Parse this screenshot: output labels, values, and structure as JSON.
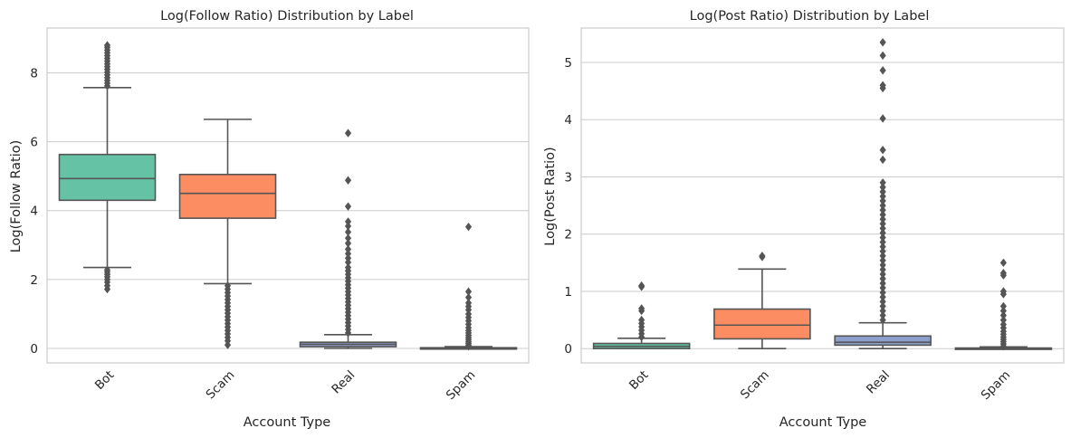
{
  "colors": {
    "background": "#ffffff",
    "grid": "#cccccc",
    "spine": "#cccccc",
    "box_edge": "#555555",
    "flier": "#555555"
  },
  "chart_data": [
    {
      "type": "box",
      "title": "Log(Follow Ratio) Distribution by Label",
      "xlabel": "Account Type",
      "ylabel": "Log(Follow Ratio)",
      "categories": [
        "Bot",
        "Scam",
        "Real",
        "Spam"
      ],
      "ylim": [
        -0.42,
        9.3
      ],
      "yticks": [
        0,
        2,
        4,
        6,
        8
      ],
      "grid": "horizontal",
      "x_tick_rotation": 45,
      "boxes": [
        {
          "label": "Bot",
          "color": "#66c2a5",
          "whisker_low": 2.35,
          "q1": 4.3,
          "median": 4.93,
          "q3": 5.63,
          "whisker_high": 7.57,
          "outliers": [
            1.72,
            1.82,
            1.92,
            2.0,
            2.08,
            2.15,
            2.22,
            2.28,
            7.62,
            7.7,
            7.78,
            7.86,
            7.94,
            8.02,
            8.1,
            8.18,
            8.26,
            8.34,
            8.42,
            8.5,
            8.58,
            8.66,
            8.74,
            8.8
          ]
        },
        {
          "label": "Scam",
          "color": "#fc8d62",
          "whisker_low": 1.88,
          "q1": 3.78,
          "median": 4.5,
          "q3": 5.05,
          "whisker_high": 6.65,
          "outliers": [
            0.1,
            0.22,
            0.32,
            0.42,
            0.52,
            0.62,
            0.72,
            0.82,
            0.92,
            1.02,
            1.12,
            1.22,
            1.32,
            1.42,
            1.52,
            1.62,
            1.72,
            1.82
          ]
        },
        {
          "label": "Real",
          "color": "#8da0cb",
          "whisker_low": 0.0,
          "q1": 0.05,
          "median": 0.12,
          "q3": 0.18,
          "whisker_high": 0.4,
          "outliers": [
            0.45,
            0.55,
            0.65,
            0.75,
            0.85,
            0.95,
            1.05,
            1.15,
            1.25,
            1.35,
            1.45,
            1.55,
            1.65,
            1.75,
            1.85,
            1.95,
            2.05,
            2.15,
            2.25,
            2.35,
            2.5,
            2.62,
            2.75,
            2.88,
            3.05,
            3.2,
            3.38,
            3.55,
            3.68,
            4.12,
            4.88,
            6.25
          ]
        },
        {
          "label": "Spam",
          "color": "#e78ac3",
          "whisker_low": 0.0,
          "q1": 0.0,
          "median": 0.0,
          "q3": 0.02,
          "whisker_high": 0.05,
          "outliers": [
            0.06,
            0.1,
            0.15,
            0.2,
            0.26,
            0.32,
            0.38,
            0.45,
            0.52,
            0.6,
            0.7,
            0.8,
            0.9,
            1.0,
            1.12,
            1.22,
            1.32,
            1.48,
            1.65,
            3.53
          ]
        }
      ]
    },
    {
      "type": "box",
      "title": "Log(Post Ratio) Distribution by Label",
      "xlabel": "Account Type",
      "ylabel": "Log(Post Ratio)",
      "categories": [
        "Bot",
        "Scam",
        "Real",
        "Spam"
      ],
      "ylim": [
        -0.25,
        5.6
      ],
      "yticks": [
        0,
        1,
        2,
        3,
        4,
        5
      ],
      "grid": "horizontal",
      "x_tick_rotation": 45,
      "boxes": [
        {
          "label": "Bot",
          "color": "#66c2a5",
          "whisker_low": 0.0,
          "q1": 0.0,
          "median": 0.04,
          "q3": 0.09,
          "whisker_high": 0.18,
          "outliers": [
            0.2,
            0.26,
            0.32,
            0.38,
            0.44,
            0.5,
            0.66,
            0.7,
            1.08,
            1.1
          ]
        },
        {
          "label": "Scam",
          "color": "#fc8d62",
          "whisker_low": 0.0,
          "q1": 0.17,
          "median": 0.41,
          "q3": 0.69,
          "whisker_high": 1.39,
          "outliers": [
            1.6,
            1.62
          ]
        },
        {
          "label": "Real",
          "color": "#8da0cb",
          "whisker_low": 0.0,
          "q1": 0.06,
          "median": 0.11,
          "q3": 0.22,
          "whisker_high": 0.45,
          "outliers": [
            0.5,
            0.58,
            0.66,
            0.74,
            0.82,
            0.9,
            0.98,
            1.06,
            1.14,
            1.22,
            1.3,
            1.38,
            1.46,
            1.54,
            1.62,
            1.7,
            1.78,
            1.86,
            1.94,
            2.02,
            2.1,
            2.18,
            2.26,
            2.34,
            2.42,
            2.5,
            2.58,
            2.66,
            2.74,
            2.82,
            2.9,
            3.3,
            3.47,
            4.02,
            4.55,
            4.6,
            4.86,
            5.12,
            5.35
          ]
        },
        {
          "label": "Spam",
          "color": "#e78ac3",
          "whisker_low": 0.0,
          "q1": 0.0,
          "median": 0.0,
          "q3": 0.01,
          "whisker_high": 0.03,
          "outliers": [
            0.04,
            0.08,
            0.12,
            0.16,
            0.2,
            0.25,
            0.3,
            0.36,
            0.42,
            0.5,
            0.58,
            0.66,
            0.74,
            0.95,
            1.0,
            1.28,
            1.32,
            1.5
          ]
        }
      ]
    }
  ]
}
